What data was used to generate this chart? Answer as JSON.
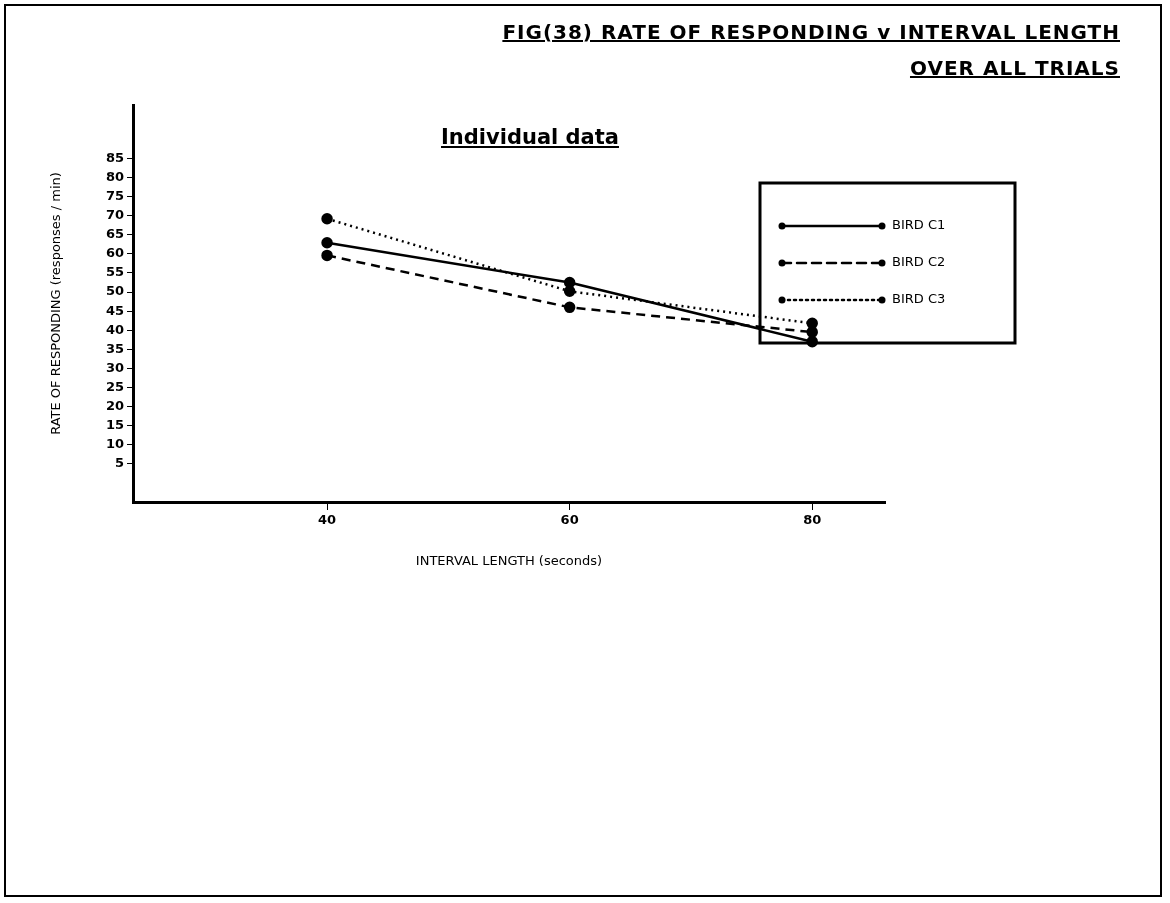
{
  "chart_data": {
    "type": "line",
    "title": "FIG(38)  RATE OF RESPONDING v INTERVAL LENGTH OVER ALL TRIALS",
    "subtitle": "Individual data",
    "xlabel": "INTERVAL LENGTH (seconds)",
    "ylabel": "RATE OF RESPONDING (responses / min)",
    "x": [
      40,
      60,
      80
    ],
    "xlim": [
      24,
      86
    ],
    "xticks": [
      40,
      60,
      80
    ],
    "ylim": [
      -5,
      99
    ],
    "yticks": [
      5,
      10,
      15,
      20,
      25,
      30,
      35,
      40,
      45,
      50,
      55,
      60,
      65,
      70,
      75,
      80,
      85
    ],
    "series": [
      {
        "name": "BIRD C1",
        "color": "#000000",
        "line_style": "solid",
        "values": [
          62.9,
          52.5,
          37
        ]
      },
      {
        "name": "BIRD C2",
        "color": "#000000",
        "line_style": "dashed",
        "values": [
          59.6,
          46,
          39.5
        ]
      },
      {
        "name": "BIRD C3",
        "color": "#000000",
        "line_style": "dotted",
        "values": [
          69.2,
          50.2,
          41.8
        ]
      }
    ],
    "marker": "circle",
    "grid": false,
    "legend": "top right"
  }
}
